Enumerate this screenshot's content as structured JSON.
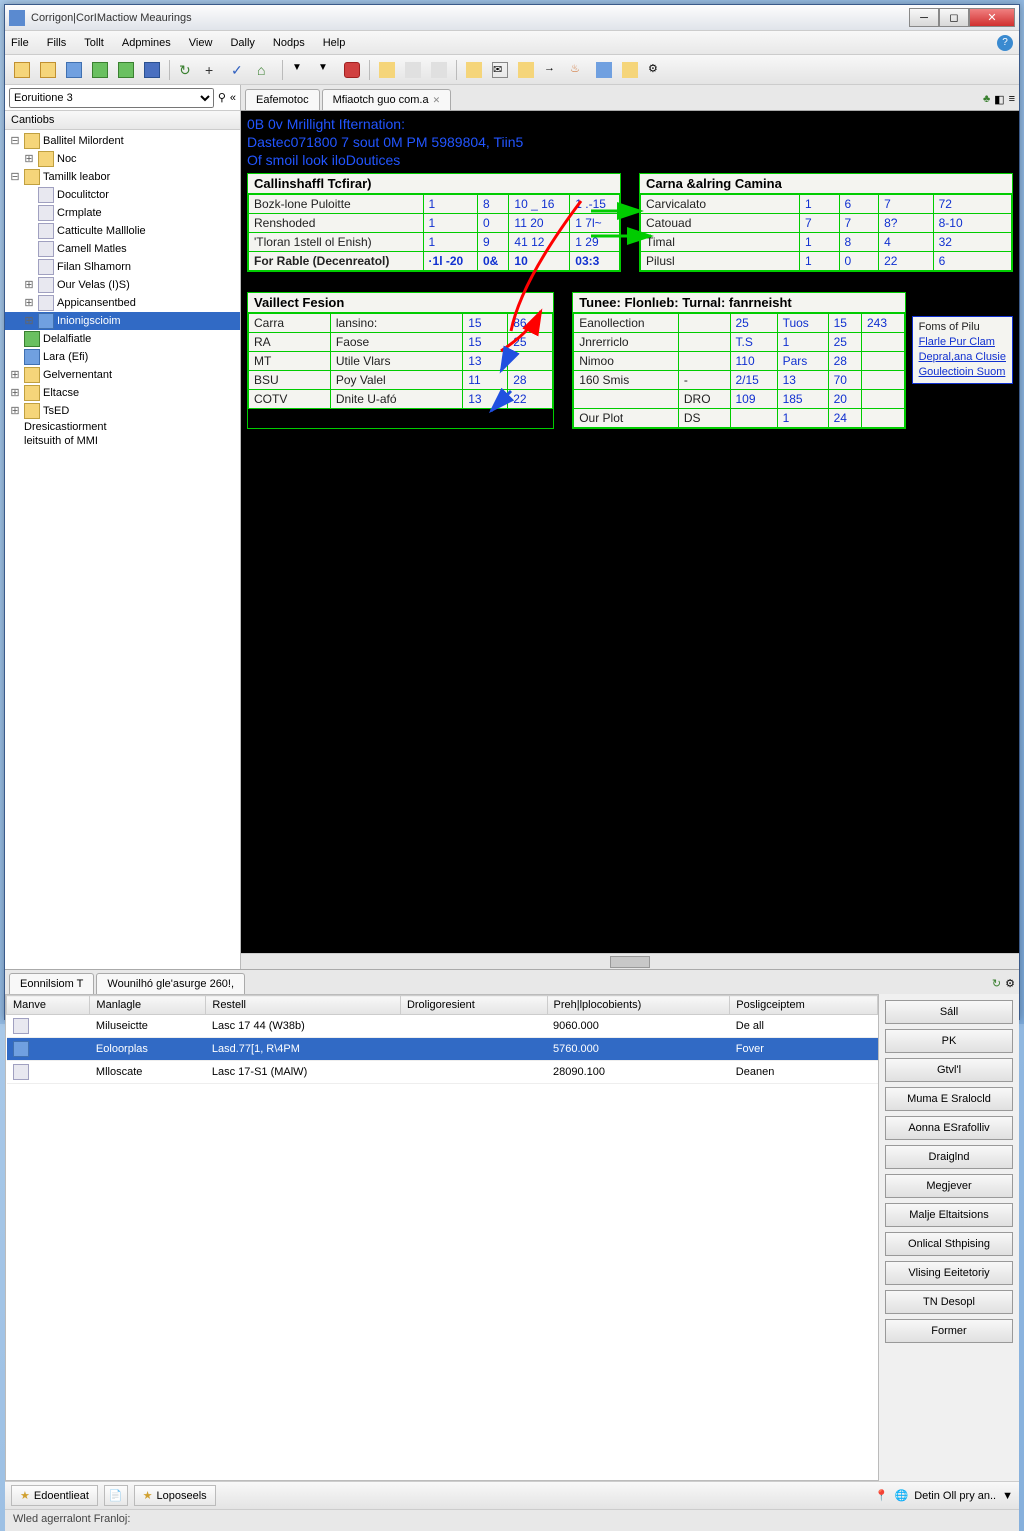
{
  "window": {
    "title": "Corrigon|CorIMactiow Meaurings"
  },
  "menu": [
    "File",
    "Fills",
    "Tollt",
    "Adpmines",
    "View",
    "Dally",
    "Nodps",
    "Help"
  ],
  "combo": {
    "value": "Eoruitione 3"
  },
  "tree": {
    "header": "Cantiobs",
    "items": [
      {
        "tw": "⊟",
        "d": 0,
        "ic": "ic-folder",
        "label": "Ballitel Milordent"
      },
      {
        "tw": "⊞",
        "d": 1,
        "ic": "ic-folder",
        "label": "Noc"
      },
      {
        "tw": "⊟",
        "d": 0,
        "ic": "ic-folder",
        "label": "Tamillk leabor"
      },
      {
        "tw": "",
        "d": 1,
        "ic": "ic-file",
        "label": "Doculitctor"
      },
      {
        "tw": "",
        "d": 1,
        "ic": "ic-file",
        "label": "Crmplate"
      },
      {
        "tw": "",
        "d": 1,
        "ic": "ic-file",
        "label": "Catticulte Malllolie"
      },
      {
        "tw": "",
        "d": 1,
        "ic": "ic-file",
        "label": "Camell Matles"
      },
      {
        "tw": "",
        "d": 1,
        "ic": "ic-file",
        "label": "Filan Slhamorn"
      },
      {
        "tw": "⊞",
        "d": 1,
        "ic": "ic-file",
        "label": "Our Velas (I)S)"
      },
      {
        "tw": "⊞",
        "d": 1,
        "ic": "ic-file",
        "label": "Appicansentbed"
      },
      {
        "tw": "⊞",
        "d": 1,
        "ic": "ic-blue",
        "label": "Inionigscioim",
        "sel": true
      },
      {
        "tw": "",
        "d": 0,
        "ic": "ic-green",
        "label": "Delalfiatle"
      },
      {
        "tw": "",
        "d": 0,
        "ic": "ic-blue",
        "label": "Lara (Efi)"
      },
      {
        "tw": "⊞",
        "d": 0,
        "ic": "ic-folder",
        "label": "Gelvernentant"
      },
      {
        "tw": "⊞",
        "d": 0,
        "ic": "ic-folder",
        "label": "Eltacse"
      },
      {
        "tw": "⊞",
        "d": 0,
        "ic": "ic-folder",
        "label": "TsED"
      },
      {
        "tw": "",
        "d": -1,
        "ic": "",
        "label": "Dresicastiorment"
      },
      {
        "tw": "",
        "d": -1,
        "ic": "",
        "label": "leitsuith of MMI"
      }
    ]
  },
  "tabs": {
    "t1": "Eafemotoc",
    "t2": "Mfiaotch guo com.a"
  },
  "bv": {
    "l1": "0B 0v Mrillight Ifternation:",
    "l2": "Dastec071800 7 sout 0M PM 5989804, Tiin5",
    "l3": "Of smoil look iloDoutices"
  },
  "p1": {
    "hdr": "Callinshaffl Tcfirar)",
    "rows": [
      {
        "lbl": "Bozk-lone Puloitte",
        "c": [
          "1",
          "8",
          "10 _ 16",
          "1 .-15"
        ]
      },
      {
        "lbl": "Renshoded",
        "c": [
          "1",
          "0",
          "11   20",
          "1   7l~"
        ]
      },
      {
        "lbl": "'Tloran 1stell ol Enish)",
        "c": [
          "1",
          "9",
          "41   12",
          "1  29"
        ]
      },
      {
        "lbl": "For Rable (Decenreatol)",
        "c": [
          "·1l  -20",
          "0&",
          "10",
          "03:3"
        ],
        "bold": true
      }
    ]
  },
  "p2": {
    "hdr": "Carna &alring Camina",
    "rows": [
      {
        "lbl": "Carvicalato",
        "c": [
          "1",
          "6",
          "7",
          "72"
        ]
      },
      {
        "lbl": "Catouad",
        "c": [
          "7",
          "7",
          "8?",
          "8-10"
        ]
      },
      {
        "lbl": "Timal",
        "c": [
          "1",
          "8",
          "4",
          "32"
        ]
      },
      {
        "lbl": "Pilusl",
        "c": [
          "1",
          "0",
          "22",
          "6"
        ]
      }
    ]
  },
  "p3": {
    "hdr": "Vaillect Fesion",
    "rows": [
      {
        "a": "Carra",
        "b": "lansino:",
        "c": "15",
        "d": "86"
      },
      {
        "a": "RA",
        "b": "Faose",
        "c": "15",
        "d": "25"
      },
      {
        "a": "MT",
        "b": "Utile Vlars",
        "c": "13",
        "d": ""
      },
      {
        "a": "BSU",
        "b": "Poy  Valel",
        "c": "11",
        "d": "28"
      },
      {
        "a": "COTV",
        "b": "Dnite U-afó",
        "c": "13",
        "d": "22"
      }
    ]
  },
  "p4": {
    "hdr": "Tunee: Flonlıeb: Turnal: fanrneisht",
    "rows": [
      {
        "a": "Eanollection",
        "b": "",
        "c": "25",
        "d": "Tuos",
        "e": "15",
        "f": "243"
      },
      {
        "a": "Jnrerriclo",
        "b": "",
        "c": "T.S",
        "d": "1",
        "e": "25",
        "f": ""
      },
      {
        "a": "Nimoo",
        "b": "",
        "c": "110",
        "d": "Pars",
        "e": "28",
        "f": ""
      },
      {
        "a": "160 Smis",
        "b": "-",
        "c": "2/15",
        "d": "13",
        "e": "70",
        "f": ""
      },
      {
        "a": "",
        "b": "DRO",
        "c": "109",
        "d": "185",
        "e": "20",
        "f": ""
      },
      {
        "a": "Our Plot",
        "b": "DS",
        "c": "",
        "d": "1",
        "e": "24",
        "f": ""
      }
    ]
  },
  "links": {
    "hdr": "Foms of Pilu",
    "l1": "Flarle Pur Clam",
    "l2": "Depral,ana Clusie",
    "l3": "Goulectioin Suom"
  },
  "btabs": {
    "t1": "Eonnilsiom T",
    "t2": "Wounilhó gle'asurge 260!,"
  },
  "grid": {
    "cols": [
      "Manve",
      "Manlagle",
      "Restell",
      "Droligoresient",
      "Preh|lplocobients)",
      "Posligceiptem"
    ],
    "rows": [
      {
        "ic": "ic-file",
        "c": [
          "",
          "Miluseictte",
          "Lasc 17 44 (W38b)",
          "",
          "9060.000",
          "De all"
        ]
      },
      {
        "ic": "ic-blue",
        "c": [
          "",
          "Eoloorplas",
          "Lasd.77[1, R\\4PM",
          "",
          "5760.000",
          "Fover"
        ],
        "sel": true
      },
      {
        "ic": "ic-file",
        "c": [
          "",
          "Mlloscate",
          "Lasc 17-S1 (MAlW)",
          "",
          "28090.100",
          "Deanen"
        ]
      }
    ]
  },
  "buttons": [
    "Sáll",
    "PK",
    "Gtvl'l",
    "Muma E Sralocld",
    "Aonna ESrafolliv",
    "Draiglnd",
    "Megjever",
    "Malje Eltaitsions",
    "Onlical Sthpising",
    "Vlising Eeitetoriy",
    "TN Desopl",
    "Former"
  ],
  "status2": {
    "b1": "Edoentlieat",
    "b2": "Loposeels",
    "r": "Detin Oll pry an.."
  },
  "status": "Wled agerralont Franloj:"
}
